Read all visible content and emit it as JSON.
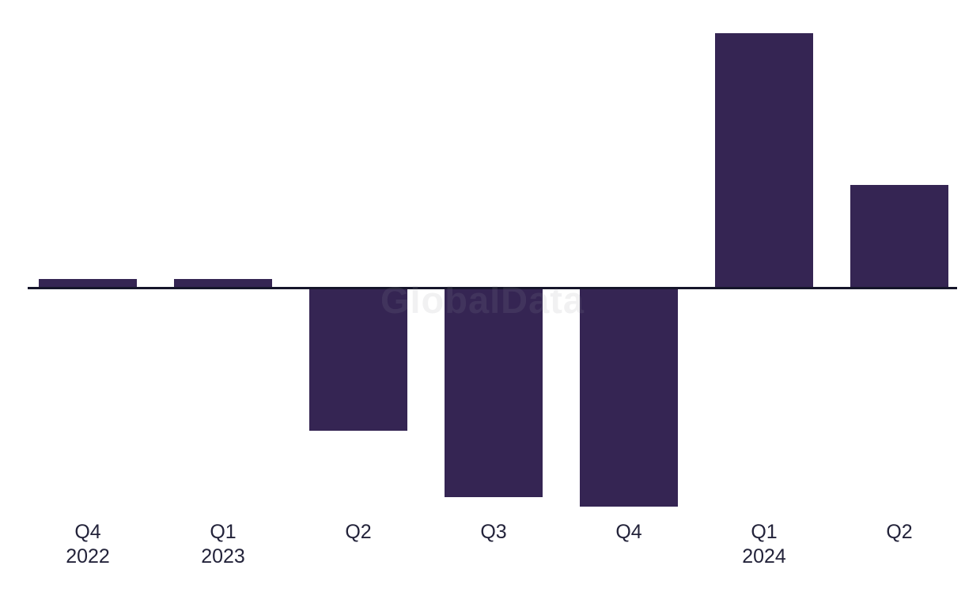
{
  "page": {
    "watermark": "GlobalData"
  },
  "chart_data": {
    "type": "bar",
    "title": "",
    "xlabel": "",
    "ylabel": "",
    "categories": [
      "Q4 2022",
      "Q1 2023",
      "Q2 2023",
      "Q3 2023",
      "Q4 2023",
      "Q1 2024",
      "Q2 2024"
    ],
    "tick_labels": [
      {
        "quarter": "Q4",
        "year": "2022"
      },
      {
        "quarter": "Q1",
        "year": "2023"
      },
      {
        "quarter": "Q2",
        "year": ""
      },
      {
        "quarter": "Q3",
        "year": ""
      },
      {
        "quarter": "Q4",
        "year": ""
      },
      {
        "quarter": "Q1",
        "year": "2024"
      },
      {
        "quarter": "Q2",
        "year": ""
      }
    ],
    "values": [
      11,
      11,
      -181,
      -265,
      -277,
      322,
      130
    ],
    "value_note": "no y-axis, gridlines or data labels visible; values are relative magnitudes estimated from bar heights",
    "ylim": [
      -300,
      340
    ],
    "grid": false,
    "legend": false,
    "y_axis_visible": false,
    "bar_color": "#352553",
    "axis_line_color": "#15152a",
    "label_color": "#23233a",
    "watermark_color": "#969aa0",
    "background_color": "#ffffff"
  }
}
